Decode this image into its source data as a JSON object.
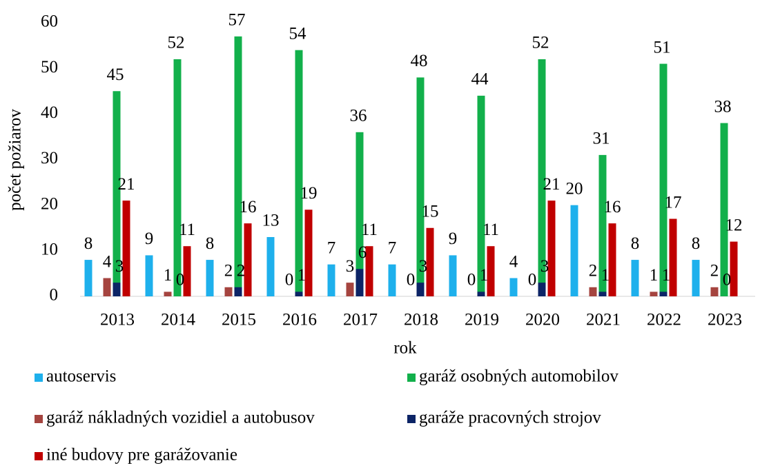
{
  "chart_data": {
    "type": "bar",
    "x_label": "rok",
    "y_label": "počet požiarov",
    "categories": [
      "2013",
      "2014",
      "2015",
      "2016",
      "2017",
      "2018",
      "2019",
      "2020",
      "2021",
      "2022",
      "2023"
    ],
    "series": [
      {
        "name": "autoservis",
        "color": "#1eb0ec",
        "values": [
          8,
          9,
          8,
          13,
          7,
          7,
          9,
          4,
          20,
          8,
          8
        ]
      },
      {
        "name": "garáž osobných automobilov",
        "color": "#12b04b",
        "values": [
          45,
          52,
          57,
          54,
          36,
          48,
          44,
          52,
          31,
          51,
          38
        ]
      },
      {
        "name": "garáž nákladných vozidiel a autobusov",
        "color": "#a5443f",
        "values": [
          4,
          1,
          2,
          0,
          3,
          0,
          0,
          0,
          2,
          1,
          2
        ]
      },
      {
        "name": "garáže pracovných strojov",
        "color": "#0c2466",
        "values": [
          3,
          0,
          2,
          1,
          6,
          3,
          1,
          3,
          1,
          1,
          0
        ]
      },
      {
        "name": "iné budovy pre garážovanie",
        "color": "#c00000",
        "values": [
          21,
          11,
          16,
          19,
          11,
          15,
          11,
          21,
          16,
          17,
          12
        ]
      }
    ],
    "ylim": [
      0,
      60
    ],
    "yticks": [
      0,
      10,
      20,
      30,
      40,
      50,
      60
    ],
    "legend": "bottom"
  }
}
